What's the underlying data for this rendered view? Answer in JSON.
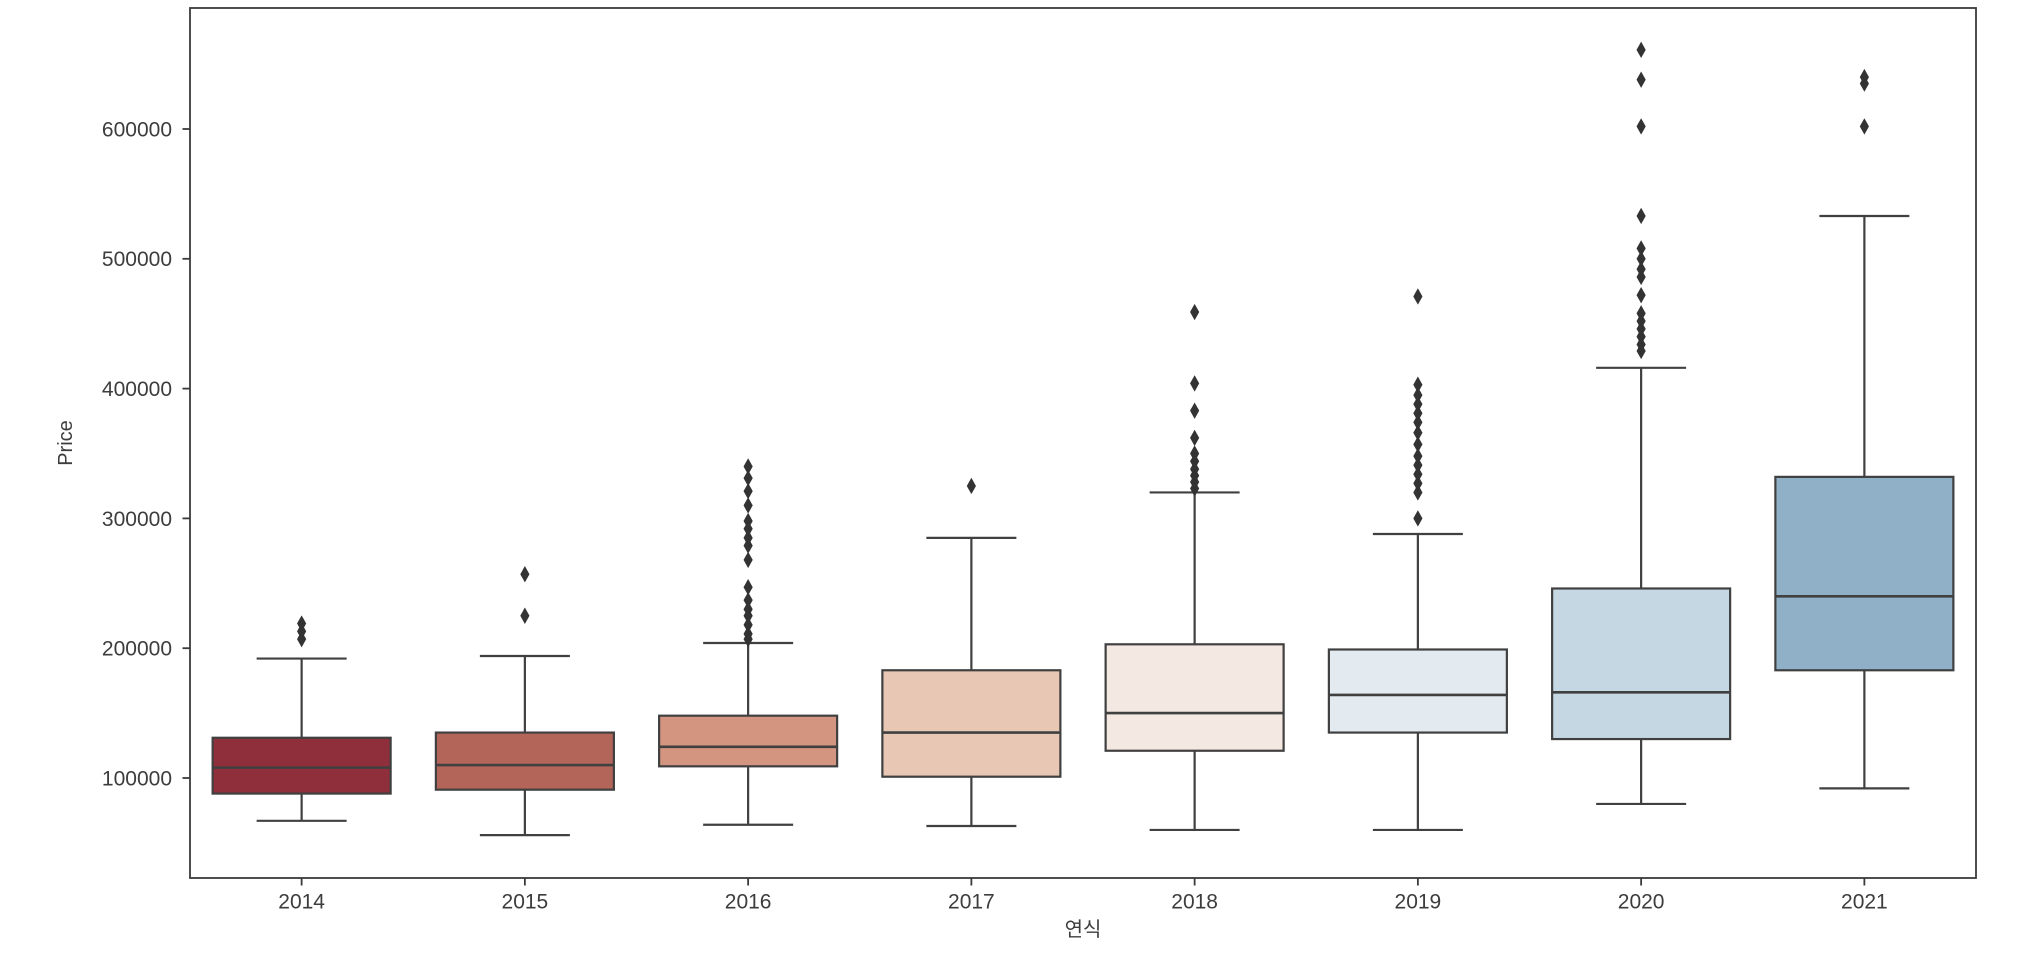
{
  "figure": {
    "background": "#ffffff",
    "spine_color": "#3a3a3a",
    "box_edge_color": "#404040",
    "outlier_color": "#333333",
    "text_color": "#3d3d3d"
  },
  "chart_data": {
    "type": "box",
    "title": "",
    "xlabel": "연식",
    "ylabel": "Price",
    "categories": [
      "2014",
      "2015",
      "2016",
      "2017",
      "2018",
      "2019",
      "2020",
      "2021"
    ],
    "y_ticks": [
      100000,
      200000,
      300000,
      400000,
      500000,
      600000
    ],
    "ylim": [
      23000,
      693000
    ],
    "grid": false,
    "legend_position": "none",
    "palette_name": "RdBu (desaturated)",
    "series": [
      {
        "category": "2014",
        "color": "#8E2F3B",
        "whisker_low": 67000,
        "q1": 88000,
        "median": 108000,
        "q3": 131000,
        "whisker_high": 192000,
        "outliers": [
          207000,
          213000,
          219000
        ]
      },
      {
        "category": "2015",
        "color": "#B4655A",
        "whisker_low": 56000,
        "q1": 91000,
        "median": 110000,
        "q3": 135000,
        "whisker_high": 194000,
        "outliers": [
          225000,
          257000
        ]
      },
      {
        "category": "2016",
        "color": "#D49580",
        "whisker_low": 64000,
        "q1": 109000,
        "median": 124000,
        "q3": 148000,
        "whisker_high": 204000,
        "outliers": [
          207000,
          211000,
          218000,
          225000,
          230000,
          237000,
          247000,
          268000,
          279000,
          285000,
          292000,
          298000,
          310000,
          321000,
          331000,
          340000
        ]
      },
      {
        "category": "2017",
        "color": "#E8C8B4",
        "whisker_low": 63000,
        "q1": 101000,
        "median": 135000,
        "q3": 183000,
        "whisker_high": 285000,
        "outliers": [
          325000
        ]
      },
      {
        "category": "2018",
        "color": "#F4E9E2",
        "whisker_low": 60000,
        "q1": 121000,
        "median": 150000,
        "q3": 203000,
        "whisker_high": 320000,
        "outliers": [
          323000,
          328000,
          333000,
          338000,
          344000,
          350000,
          362000,
          383000,
          404000,
          459000
        ]
      },
      {
        "category": "2019",
        "color": "#E4EBF0",
        "whisker_low": 60000,
        "q1": 135000,
        "median": 164000,
        "q3": 199000,
        "whisker_high": 288000,
        "outliers": [
          300000,
          320000,
          327000,
          334000,
          341000,
          348000,
          357000,
          366000,
          374000,
          381000,
          388000,
          395000,
          403000,
          471000
        ]
      },
      {
        "category": "2020",
        "color": "#C4D7E2",
        "whisker_low": 80000,
        "q1": 130000,
        "median": 166000,
        "q3": 246000,
        "whisker_high": 416000,
        "outliers": [
          429000,
          434000,
          440000,
          446000,
          452000,
          458000,
          472000,
          486000,
          492000,
          500000,
          508000,
          533000,
          602000,
          638000,
          661000
        ]
      },
      {
        "category": "2021",
        "color": "#8FB0C7",
        "whisker_low": 92000,
        "q1": 183000,
        "median": 240000,
        "q3": 332000,
        "whisker_high": 533000,
        "outliers": [
          602000,
          635000,
          640000
        ]
      }
    ]
  }
}
